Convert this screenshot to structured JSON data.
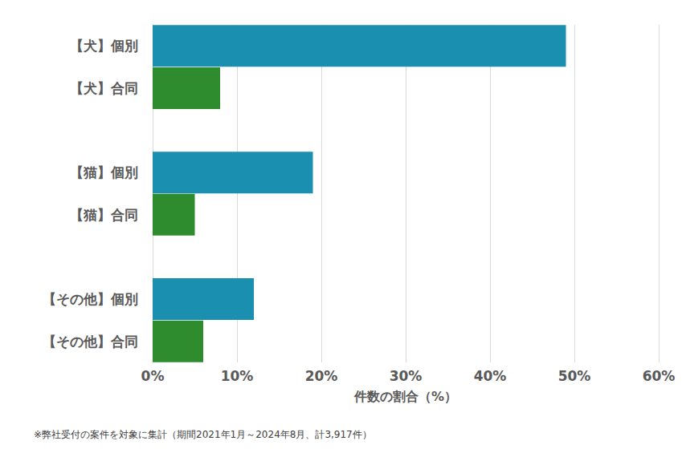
{
  "chart_data": {
    "type": "bar",
    "orientation": "horizontal",
    "categories": [
      "【犬】個別",
      "【犬】合同",
      null,
      "【猫】個別",
      "【猫】合同",
      null,
      "【その他】個別",
      "【その他】合同"
    ],
    "values": [
      49,
      8,
      null,
      19,
      5,
      null,
      12,
      6
    ],
    "colors": [
      "#1a8fb0",
      "#2e8b2e",
      null,
      "#1a8fb0",
      "#2e8b2e",
      null,
      "#1a8fb0",
      "#2e8b2e"
    ],
    "xlabel": "件数の割合（%）",
    "xlim": [
      0,
      60
    ],
    "xticks": [
      {
        "value": 0,
        "label": "0%"
      },
      {
        "value": 10,
        "label": "10%"
      },
      {
        "value": 20,
        "label": "20%"
      },
      {
        "value": 30,
        "label": "30%"
      },
      {
        "value": 40,
        "label": "40%"
      },
      {
        "value": 50,
        "label": "50%"
      },
      {
        "value": 60,
        "label": "60%"
      }
    ],
    "grid": true,
    "annotations": [
      "※弊社受付の案件を対象に集計（期間2021年1月～2024年8月、計3,917件）"
    ]
  }
}
